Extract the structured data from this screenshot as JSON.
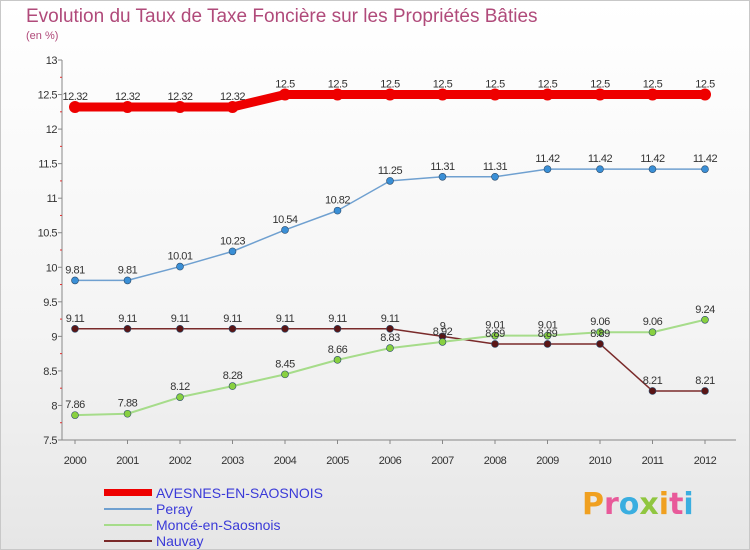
{
  "title": "Evolution du Taux de Taxe Foncière sur les Propriétés Bâties",
  "subtitle": "(en %)",
  "chart_data": {
    "type": "line",
    "title": "Evolution du Taux de Taxe Foncière sur les Propriétés Bâties",
    "ylabel": "(en %)",
    "xlabel": "",
    "ylim": [
      7.5,
      13
    ],
    "yticks": [
      "7.5",
      "8",
      "8.5",
      "9",
      "9.5",
      "10",
      "10.5",
      "11",
      "11.5",
      "12",
      "12.5",
      "13"
    ],
    "categories": [
      "2000",
      "2001",
      "2002",
      "2003",
      "2004",
      "2005",
      "2006",
      "2007",
      "2008",
      "2009",
      "2010",
      "2011",
      "2012"
    ],
    "grid": false,
    "legend_position": "bottom-left",
    "series": [
      {
        "name": "AVESNES-EN-SAOSNOIS",
        "color": "#ee0000",
        "values": [
          12.32,
          12.32,
          12.32,
          12.32,
          12.5,
          12.5,
          12.5,
          12.5,
          12.5,
          12.5,
          12.5,
          12.5,
          12.5
        ],
        "labels": [
          "12.32",
          "12.32",
          "12.32",
          "12.32",
          "12.5",
          "12.5",
          "12.5",
          "12.5",
          "12.5",
          "12.5",
          "12.5",
          "12.5",
          "12.5"
        ]
      },
      {
        "name": "Peray",
        "color": "#6fa0d0",
        "point_color": "#3a8fd6",
        "values": [
          9.81,
          9.81,
          10.01,
          10.23,
          10.54,
          10.82,
          11.25,
          11.31,
          11.31,
          11.42,
          11.42,
          11.42,
          11.42
        ],
        "labels": [
          "9.81",
          "9.81",
          "10.01",
          "10.23",
          "10.54",
          "10.82",
          "11.25",
          "11.31",
          "11.31",
          "11.42",
          "11.42",
          "11.42",
          "11.42"
        ]
      },
      {
        "name": "Moncé-en-Saosnois",
        "color": "#a6dc8a",
        "point_color": "#88d040",
        "values": [
          7.86,
          7.88,
          8.12,
          8.28,
          8.45,
          8.66,
          8.83,
          8.92,
          9.01,
          9.01,
          9.06,
          9.06,
          9.24
        ],
        "labels": [
          "7.86",
          "7.88",
          "8.12",
          "8.28",
          "8.45",
          "8.66",
          "8.83",
          "8.92",
          "9.01",
          "9.01",
          "9.06",
          "9.06",
          "9.24"
        ]
      },
      {
        "name": "Nauvay",
        "color": "#7a2a2a",
        "point_color": "#5a1515",
        "values": [
          9.11,
          9.11,
          9.11,
          9.11,
          9.11,
          9.11,
          9.11,
          9.0,
          8.89,
          8.89,
          8.89,
          8.21,
          8.21
        ],
        "labels": [
          "9.11",
          "9.11",
          "9.11",
          "9.11",
          "9.11",
          "9.11",
          "9.11",
          "9",
          "8.89",
          "8.89",
          "8.89",
          "8.21",
          "8.21"
        ]
      }
    ]
  },
  "logo": {
    "letters": [
      {
        "ch": "P",
        "color": "#f0a020"
      },
      {
        "ch": "r",
        "color": "#e85a9a"
      },
      {
        "ch": "o",
        "color": "#3aaee0"
      },
      {
        "ch": "x",
        "color": "#90c640"
      },
      {
        "ch": "i",
        "color": "#f0a020"
      },
      {
        "ch": "t",
        "color": "#e85a9a"
      },
      {
        "ch": "i",
        "color": "#3aaee0"
      }
    ]
  }
}
